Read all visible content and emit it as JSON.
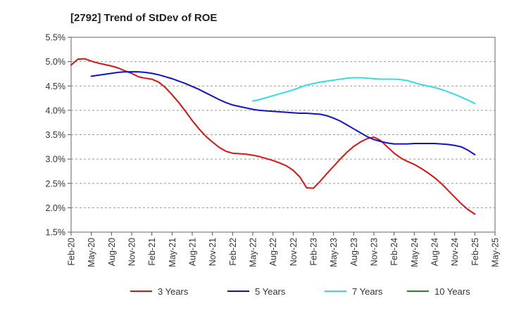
{
  "chart_data": {
    "type": "line",
    "title": "[2792]  Trend of StDev of ROE",
    "xlabel": "",
    "ylabel": "",
    "x_ticks": [
      "Feb-20",
      "May-20",
      "Aug-20",
      "Nov-20",
      "Feb-21",
      "May-21",
      "Aug-21",
      "Nov-21",
      "Feb-22",
      "May-22",
      "Aug-22",
      "Nov-22",
      "Feb-23",
      "May-23",
      "Aug-23",
      "Nov-23",
      "Feb-24",
      "May-24",
      "Aug-24",
      "Nov-24",
      "Feb-25",
      "May-25"
    ],
    "y_ticks": [
      "1.5%",
      "2.0%",
      "2.5%",
      "3.0%",
      "3.5%",
      "4.0%",
      "4.5%",
      "5.0%",
      "5.5%"
    ],
    "ylim": [
      1.5,
      5.5
    ],
    "grid": "horizontal-dashed",
    "legend_position": "bottom",
    "series": [
      {
        "name": "3 Years",
        "color": "#dd1111",
        "points": [
          [
            "Feb-20",
            4.93
          ],
          [
            "Mar-20",
            5.05
          ],
          [
            "Apr-20",
            5.06
          ],
          [
            "May-20",
            5.01
          ],
          [
            "Jun-20",
            4.97
          ],
          [
            "Jul-20",
            4.94
          ],
          [
            "Aug-20",
            4.91
          ],
          [
            "Sep-20",
            4.87
          ],
          [
            "Oct-20",
            4.81
          ],
          [
            "Nov-20",
            4.76
          ],
          [
            "Dec-20",
            4.69
          ],
          [
            "Jan-21",
            4.66
          ],
          [
            "Feb-21",
            4.64
          ],
          [
            "Mar-21",
            4.58
          ],
          [
            "Apr-21",
            4.47
          ],
          [
            "May-21",
            4.32
          ],
          [
            "Jun-21",
            4.16
          ],
          [
            "Jul-21",
            3.98
          ],
          [
            "Aug-21",
            3.79
          ],
          [
            "Sep-21",
            3.62
          ],
          [
            "Oct-21",
            3.47
          ],
          [
            "Nov-21",
            3.35
          ],
          [
            "Dec-21",
            3.24
          ],
          [
            "Jan-22",
            3.16
          ],
          [
            "Feb-22",
            3.12
          ],
          [
            "Mar-22",
            3.11
          ],
          [
            "Apr-22",
            3.1
          ],
          [
            "May-22",
            3.08
          ],
          [
            "Jun-22",
            3.05
          ],
          [
            "Jul-22",
            3.01
          ],
          [
            "Aug-22",
            2.97
          ],
          [
            "Sep-22",
            2.92
          ],
          [
            "Oct-22",
            2.86
          ],
          [
            "Nov-22",
            2.77
          ],
          [
            "Dec-22",
            2.63
          ],
          [
            "Jan-23",
            2.41
          ],
          [
            "Feb-23",
            2.4
          ],
          [
            "Mar-23",
            2.54
          ],
          [
            "Apr-23",
            2.7
          ],
          [
            "May-23",
            2.85
          ],
          [
            "Jun-23",
            3.0
          ],
          [
            "Jul-23",
            3.14
          ],
          [
            "Aug-23",
            3.26
          ],
          [
            "Sep-23",
            3.35
          ],
          [
            "Oct-23",
            3.42
          ],
          [
            "Nov-23",
            3.45
          ],
          [
            "Dec-23",
            3.38
          ],
          [
            "Jan-24",
            3.25
          ],
          [
            "Feb-24",
            3.12
          ],
          [
            "Mar-24",
            3.02
          ],
          [
            "Apr-24",
            2.95
          ],
          [
            "May-24",
            2.89
          ],
          [
            "Jun-24",
            2.81
          ],
          [
            "Jul-24",
            2.72
          ],
          [
            "Aug-24",
            2.62
          ],
          [
            "Sep-24",
            2.5
          ],
          [
            "Oct-24",
            2.36
          ],
          [
            "Nov-24",
            2.22
          ],
          [
            "Dec-24",
            2.08
          ],
          [
            "Jan-25",
            1.96
          ],
          [
            "Feb-25",
            1.87
          ]
        ]
      },
      {
        "name": "5 Years",
        "color": "#1111cc",
        "points": [
          [
            "May-20",
            4.7
          ],
          [
            "Jun-20",
            4.72
          ],
          [
            "Jul-20",
            4.74
          ],
          [
            "Aug-20",
            4.76
          ],
          [
            "Sep-20",
            4.78
          ],
          [
            "Oct-20",
            4.79
          ],
          [
            "Nov-20",
            4.79
          ],
          [
            "Dec-20",
            4.79
          ],
          [
            "Jan-21",
            4.78
          ],
          [
            "Feb-21",
            4.76
          ],
          [
            "Mar-21",
            4.73
          ],
          [
            "Apr-21",
            4.69
          ],
          [
            "May-21",
            4.65
          ],
          [
            "Jun-21",
            4.6
          ],
          [
            "Jul-21",
            4.55
          ],
          [
            "Aug-21",
            4.49
          ],
          [
            "Sep-21",
            4.43
          ],
          [
            "Oct-21",
            4.36
          ],
          [
            "Nov-21",
            4.29
          ],
          [
            "Dec-21",
            4.22
          ],
          [
            "Jan-22",
            4.16
          ],
          [
            "Feb-22",
            4.11
          ],
          [
            "Mar-22",
            4.08
          ],
          [
            "Apr-22",
            4.05
          ],
          [
            "May-22",
            4.02
          ],
          [
            "Jun-22",
            4.0
          ],
          [
            "Jul-22",
            3.99
          ],
          [
            "Aug-22",
            3.98
          ],
          [
            "Sep-22",
            3.97
          ],
          [
            "Oct-22",
            3.96
          ],
          [
            "Nov-22",
            3.95
          ],
          [
            "Dec-22",
            3.94
          ],
          [
            "Jan-23",
            3.94
          ],
          [
            "Feb-23",
            3.93
          ],
          [
            "Mar-23",
            3.92
          ],
          [
            "Apr-23",
            3.89
          ],
          [
            "May-23",
            3.84
          ],
          [
            "Jun-23",
            3.78
          ],
          [
            "Jul-23",
            3.7
          ],
          [
            "Aug-23",
            3.62
          ],
          [
            "Sep-23",
            3.54
          ],
          [
            "Oct-23",
            3.46
          ],
          [
            "Nov-23",
            3.4
          ],
          [
            "Dec-23",
            3.36
          ],
          [
            "Jan-24",
            3.33
          ],
          [
            "Feb-24",
            3.31
          ],
          [
            "Mar-24",
            3.31
          ],
          [
            "Apr-24",
            3.31
          ],
          [
            "May-24",
            3.32
          ],
          [
            "Jun-24",
            3.32
          ],
          [
            "Jul-24",
            3.32
          ],
          [
            "Aug-24",
            3.32
          ],
          [
            "Sep-24",
            3.31
          ],
          [
            "Oct-24",
            3.3
          ],
          [
            "Nov-24",
            3.28
          ],
          [
            "Dec-24",
            3.25
          ],
          [
            "Jan-25",
            3.18
          ],
          [
            "Feb-25",
            3.09
          ]
        ]
      },
      {
        "name": "7 Years",
        "color": "#33dddd",
        "points": [
          [
            "May-22",
            4.19
          ],
          [
            "Jun-22",
            4.22
          ],
          [
            "Jul-22",
            4.26
          ],
          [
            "Aug-22",
            4.3
          ],
          [
            "Sep-22",
            4.34
          ],
          [
            "Oct-22",
            4.38
          ],
          [
            "Nov-22",
            4.42
          ],
          [
            "Dec-22",
            4.47
          ],
          [
            "Jan-23",
            4.52
          ],
          [
            "Feb-23",
            4.55
          ],
          [
            "Mar-23",
            4.58
          ],
          [
            "Apr-23",
            4.6
          ],
          [
            "May-23",
            4.62
          ],
          [
            "Jun-23",
            4.64
          ],
          [
            "Jul-23",
            4.66
          ],
          [
            "Aug-23",
            4.67
          ],
          [
            "Sep-23",
            4.67
          ],
          [
            "Oct-23",
            4.66
          ],
          [
            "Nov-23",
            4.65
          ],
          [
            "Dec-23",
            4.64
          ],
          [
            "Jan-24",
            4.64
          ],
          [
            "Feb-24",
            4.64
          ],
          [
            "Mar-24",
            4.63
          ],
          [
            "Apr-24",
            4.61
          ],
          [
            "May-24",
            4.57
          ],
          [
            "Jun-24",
            4.53
          ],
          [
            "Jul-24",
            4.5
          ],
          [
            "Aug-24",
            4.47
          ],
          [
            "Sep-24",
            4.43
          ],
          [
            "Oct-24",
            4.38
          ],
          [
            "Nov-24",
            4.33
          ],
          [
            "Dec-24",
            4.27
          ],
          [
            "Jan-25",
            4.21
          ],
          [
            "Feb-25",
            4.14
          ]
        ]
      },
      {
        "name": "10 Years",
        "color": "#228822",
        "points": []
      }
    ]
  }
}
